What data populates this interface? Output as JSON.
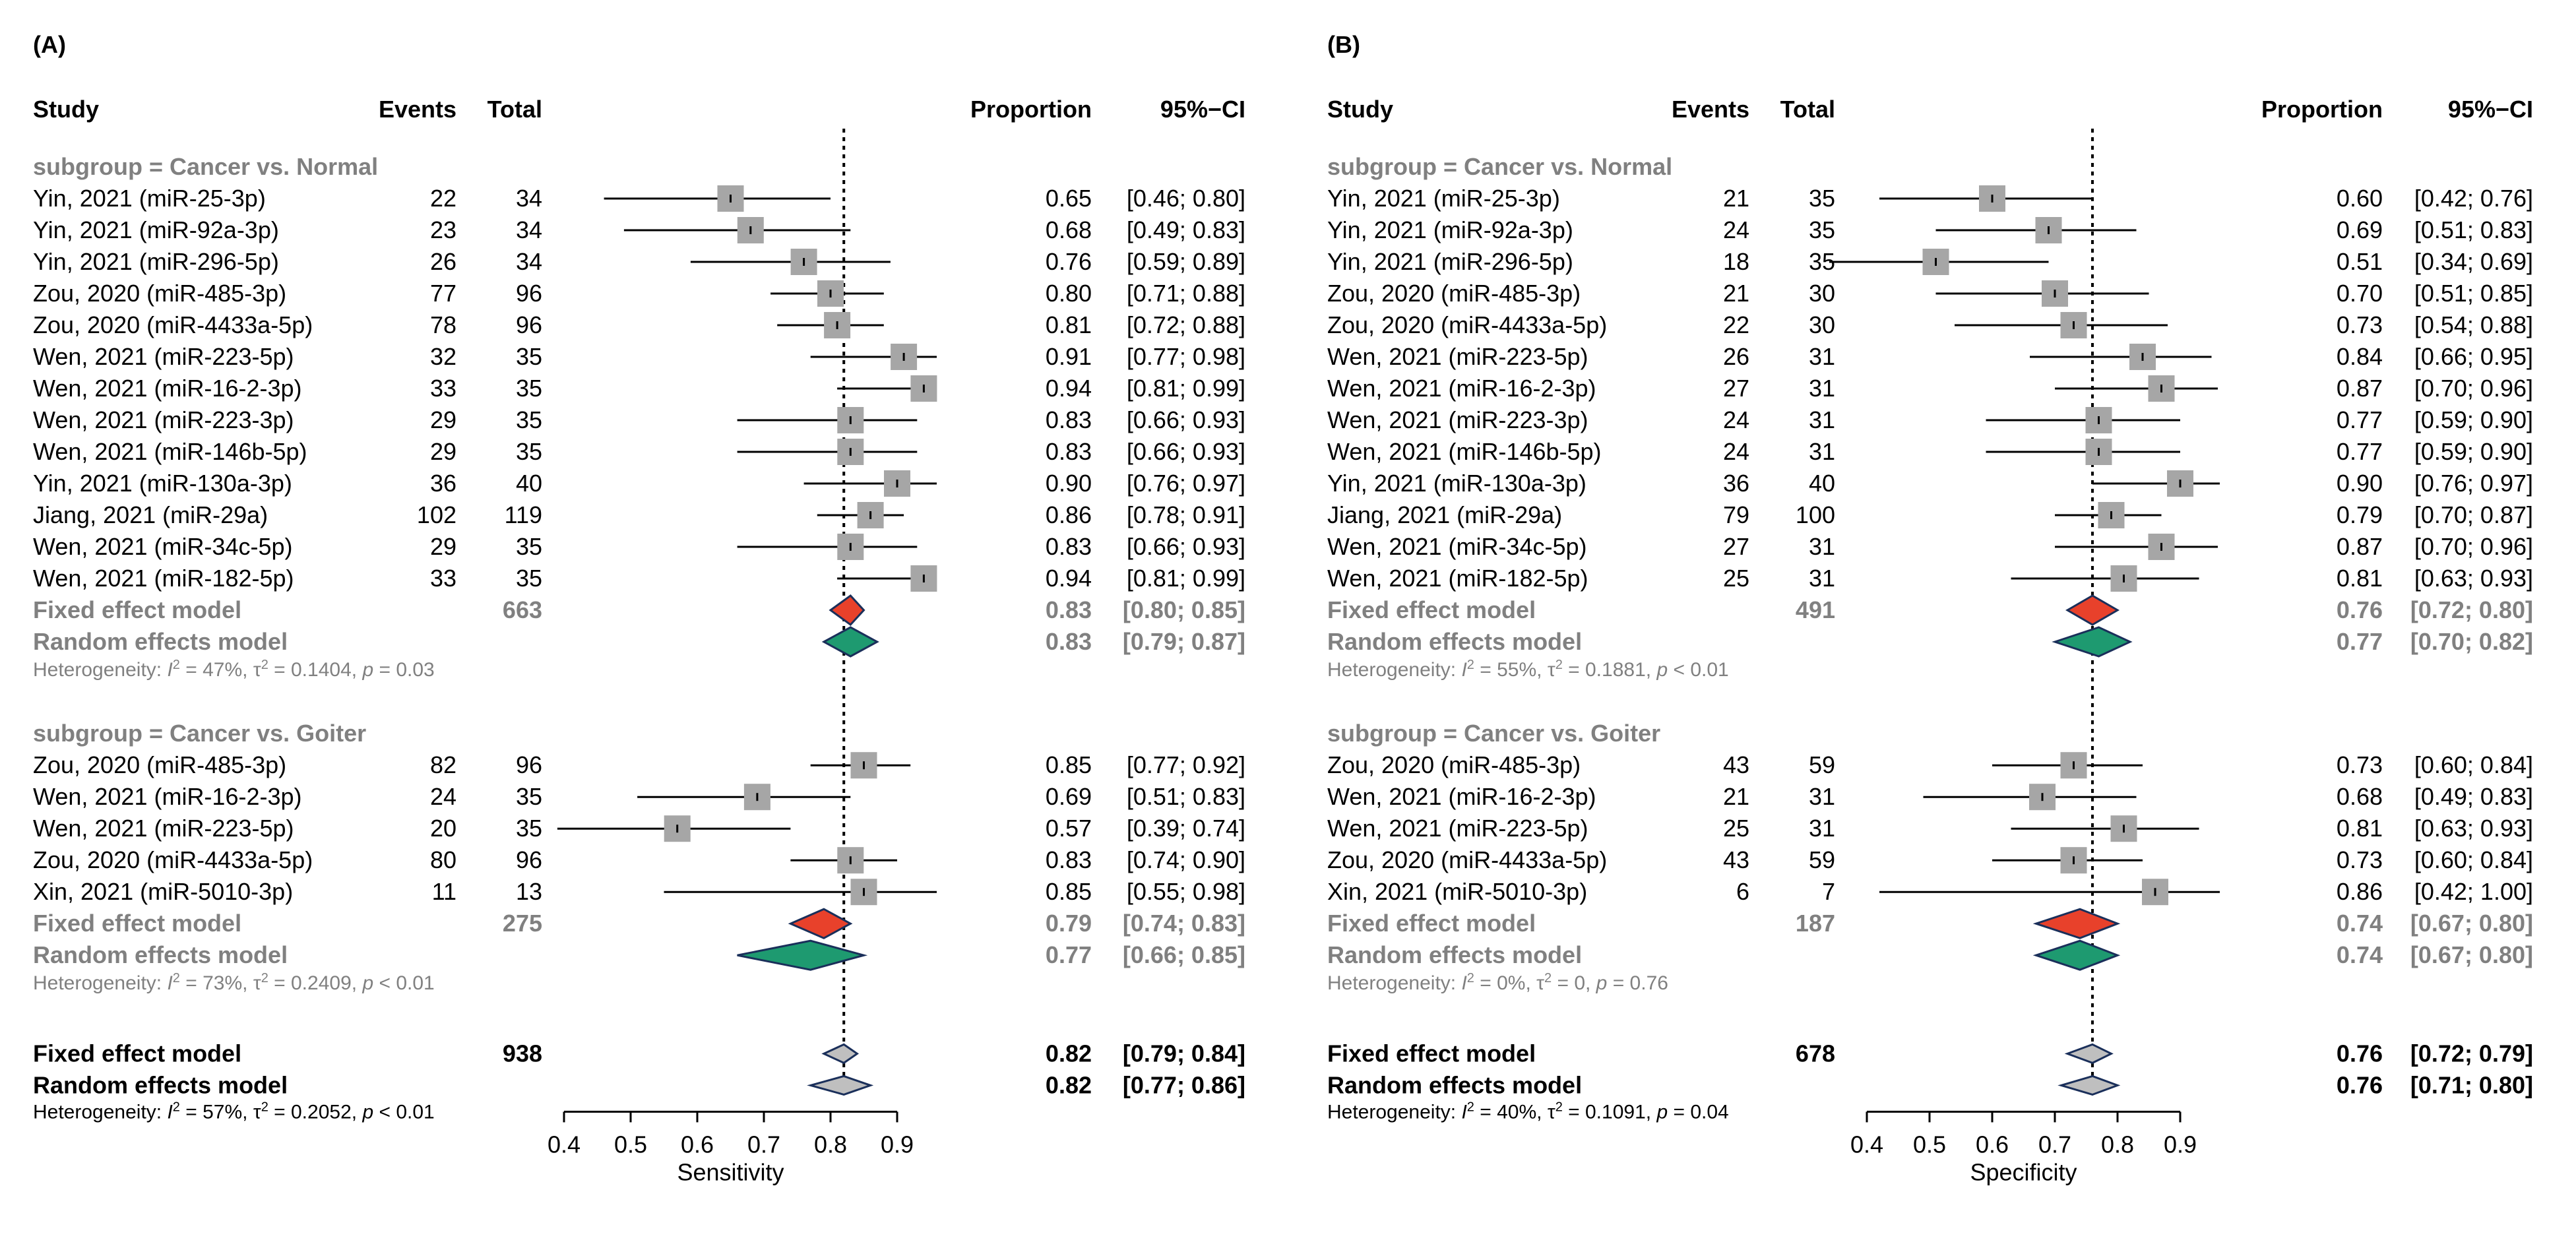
{
  "chart_data": [
    {
      "type": "forest",
      "panel_label": "(A)",
      "headers": {
        "study": "Study",
        "events": "Events",
        "total": "Total",
        "proportion": "Proportion",
        "ci": "95%−CI"
      },
      "xlabel": "Sensitivity",
      "xlim": [
        0.4,
        0.9
      ],
      "xticks": [
        "0.4",
        "0.5",
        "0.6",
        "0.7",
        "0.8",
        "0.9"
      ],
      "reference_line": 0.82,
      "subgroups": [
        {
          "label": "subgroup = Cancer vs. Normal",
          "studies": [
            {
              "name": "Yin, 2021 (miR-25-3p)",
              "events": "22",
              "total": "34",
              "est": 0.65,
              "lo": 0.46,
              "hi": 0.8,
              "prop": "0.65",
              "ci": "[0.46; 0.80]"
            },
            {
              "name": "Yin, 2021 (miR-92a-3p)",
              "events": "23",
              "total": "34",
              "est": 0.68,
              "lo": 0.49,
              "hi": 0.83,
              "prop": "0.68",
              "ci": "[0.49; 0.83]"
            },
            {
              "name": "Yin, 2021 (miR-296-5p)",
              "events": "26",
              "total": "34",
              "est": 0.76,
              "lo": 0.59,
              "hi": 0.89,
              "prop": "0.76",
              "ci": "[0.59; 0.89]"
            },
            {
              "name": "Zou, 2020 (miR-485-3p)",
              "events": "77",
              "total": "96",
              "est": 0.8,
              "lo": 0.71,
              "hi": 0.88,
              "prop": "0.80",
              "ci": "[0.71; 0.88]"
            },
            {
              "name": "Zou, 2020 (miR-4433a-5p)",
              "events": "78",
              "total": "96",
              "est": 0.81,
              "lo": 0.72,
              "hi": 0.88,
              "prop": "0.81",
              "ci": "[0.72; 0.88]"
            },
            {
              "name": "Wen, 2021 (miR-223-5p)",
              "events": "32",
              "total": "35",
              "est": 0.91,
              "lo": 0.77,
              "hi": 0.98,
              "prop": "0.91",
              "ci": "[0.77; 0.98]"
            },
            {
              "name": "Wen, 2021 (miR-16-2-3p)",
              "events": "33",
              "total": "35",
              "est": 0.94,
              "lo": 0.81,
              "hi": 0.99,
              "prop": "0.94",
              "ci": "[0.81; 0.99]"
            },
            {
              "name": "Wen, 2021 (miR-223-3p)",
              "events": "29",
              "total": "35",
              "est": 0.83,
              "lo": 0.66,
              "hi": 0.93,
              "prop": "0.83",
              "ci": "[0.66; 0.93]"
            },
            {
              "name": "Wen, 2021 (miR-146b-5p)",
              "events": "29",
              "total": "35",
              "est": 0.83,
              "lo": 0.66,
              "hi": 0.93,
              "prop": "0.83",
              "ci": "[0.66; 0.93]"
            },
            {
              "name": "Yin, 2021 (miR-130a-3p)",
              "events": "36",
              "total": "40",
              "est": 0.9,
              "lo": 0.76,
              "hi": 0.97,
              "prop": "0.90",
              "ci": "[0.76; 0.97]"
            },
            {
              "name": "Jiang, 2021 (miR-29a)",
              "events": "102",
              "total": "119",
              "est": 0.86,
              "lo": 0.78,
              "hi": 0.91,
              "prop": "0.86",
              "ci": "[0.78; 0.91]"
            },
            {
              "name": "Wen, 2021 (miR-34c-5p)",
              "events": "29",
              "total": "35",
              "est": 0.83,
              "lo": 0.66,
              "hi": 0.93,
              "prop": "0.83",
              "ci": "[0.66; 0.93]"
            },
            {
              "name": "Wen, 2021 (miR-182-5p)",
              "events": "33",
              "total": "35",
              "est": 0.94,
              "lo": 0.81,
              "hi": 0.99,
              "prop": "0.94",
              "ci": "[0.81; 0.99]"
            }
          ],
          "fixed": {
            "label": "Fixed effect model",
            "total": "663",
            "est": 0.83,
            "lo": 0.8,
            "hi": 0.85,
            "prop": "0.83",
            "ci": "[0.80; 0.85]"
          },
          "random": {
            "label": "Random effects model",
            "est": 0.83,
            "lo": 0.79,
            "hi": 0.87,
            "prop": "0.83",
            "ci": "[0.79; 0.87]"
          },
          "het": {
            "prefix": "Heterogeneity: ",
            "i": "I",
            "i_sup": "2",
            "i_val": " = 47%, ",
            "tau": "τ",
            "tau_sup": "2",
            "tau_val": " = 0.1404, ",
            "p": "p",
            "p_val": " = 0.03"
          }
        },
        {
          "label": "subgroup = Cancer vs. Goiter",
          "studies": [
            {
              "name": "Zou, 2020 (miR-485-3p)",
              "events": "82",
              "total": "96",
              "est": 0.85,
              "lo": 0.77,
              "hi": 0.92,
              "prop": "0.85",
              "ci": "[0.77; 0.92]"
            },
            {
              "name": "Wen, 2021 (miR-16-2-3p)",
              "events": "24",
              "total": "35",
              "est": 0.69,
              "lo": 0.51,
              "hi": 0.83,
              "prop": "0.69",
              "ci": "[0.51; 0.83]"
            },
            {
              "name": "Wen, 2021 (miR-223-5p)",
              "events": "20",
              "total": "35",
              "est": 0.57,
              "lo": 0.39,
              "hi": 0.74,
              "prop": "0.57",
              "ci": "[0.39; 0.74]"
            },
            {
              "name": "Zou, 2020 (miR-4433a-5p)",
              "events": "80",
              "total": "96",
              "est": 0.83,
              "lo": 0.74,
              "hi": 0.9,
              "prop": "0.83",
              "ci": "[0.74; 0.90]"
            },
            {
              "name": "Xin, 2021 (miR-5010-3p)",
              "events": "11",
              "total": "13",
              "est": 0.85,
              "lo": 0.55,
              "hi": 0.98,
              "prop": "0.85",
              "ci": "[0.55; 0.98]"
            }
          ],
          "fixed": {
            "label": "Fixed effect model",
            "total": "275",
            "est": 0.79,
            "lo": 0.74,
            "hi": 0.83,
            "prop": "0.79",
            "ci": "[0.74; 0.83]"
          },
          "random": {
            "label": "Random effects model",
            "est": 0.77,
            "lo": 0.66,
            "hi": 0.85,
            "prop": "0.77",
            "ci": "[0.66; 0.85]"
          },
          "het": {
            "prefix": "Heterogeneity: ",
            "i": "I",
            "i_sup": "2",
            "i_val": " = 73%, ",
            "tau": "τ",
            "tau_sup": "2",
            "tau_val": " = 0.2409, ",
            "p": "p",
            "p_val": " < 0.01"
          }
        }
      ],
      "overall": {
        "fixed": {
          "label": "Fixed effect model",
          "total": "938",
          "est": 0.82,
          "lo": 0.79,
          "hi": 0.84,
          "prop": "0.82",
          "ci": "[0.79; 0.84]"
        },
        "random": {
          "label": "Random effects model",
          "est": 0.82,
          "lo": 0.77,
          "hi": 0.86,
          "prop": "0.82",
          "ci": "[0.77; 0.86]"
        },
        "het": {
          "prefix": "Heterogeneity: ",
          "i": "I",
          "i_sup": "2",
          "i_val": " = 57%, ",
          "tau": "τ",
          "tau_sup": "2",
          "tau_val": " = 0.2052, ",
          "p": "p",
          "p_val": " < 0.01"
        }
      }
    },
    {
      "type": "forest",
      "panel_label": "(B)",
      "headers": {
        "study": "Study",
        "events": "Events",
        "total": "Total",
        "proportion": "Proportion",
        "ci": "95%−CI"
      },
      "xlabel": "Specificity",
      "xlim": [
        0.4,
        0.9
      ],
      "xticks": [
        "0.4",
        "0.5",
        "0.6",
        "0.7",
        "0.8",
        "0.9"
      ],
      "reference_line": 0.76,
      "subgroups": [
        {
          "label": "subgroup = Cancer vs. Normal",
          "studies": [
            {
              "name": "Yin, 2021 (miR-25-3p)",
              "events": "21",
              "total": "35",
              "est": 0.6,
              "lo": 0.42,
              "hi": 0.76,
              "prop": "0.60",
              "ci": "[0.42; 0.76]"
            },
            {
              "name": "Yin, 2021 (miR-92a-3p)",
              "events": "24",
              "total": "35",
              "est": 0.69,
              "lo": 0.51,
              "hi": 0.83,
              "prop": "0.69",
              "ci": "[0.51; 0.83]"
            },
            {
              "name": "Yin, 2021 (miR-296-5p)",
              "events": "18",
              "total": "35",
              "est": 0.51,
              "lo": 0.34,
              "hi": 0.69,
              "prop": "0.51",
              "ci": "[0.34; 0.69]"
            },
            {
              "name": "Zou, 2020 (miR-485-3p)",
              "events": "21",
              "total": "30",
              "est": 0.7,
              "lo": 0.51,
              "hi": 0.85,
              "prop": "0.70",
              "ci": "[0.51; 0.85]"
            },
            {
              "name": "Zou, 2020 (miR-4433a-5p)",
              "events": "22",
              "total": "30",
              "est": 0.73,
              "lo": 0.54,
              "hi": 0.88,
              "prop": "0.73",
              "ci": "[0.54; 0.88]"
            },
            {
              "name": "Wen, 2021 (miR-223-5p)",
              "events": "26",
              "total": "31",
              "est": 0.84,
              "lo": 0.66,
              "hi": 0.95,
              "prop": "0.84",
              "ci": "[0.66; 0.95]"
            },
            {
              "name": "Wen, 2021 (miR-16-2-3p)",
              "events": "27",
              "total": "31",
              "est": 0.87,
              "lo": 0.7,
              "hi": 0.96,
              "prop": "0.87",
              "ci": "[0.70; 0.96]"
            },
            {
              "name": "Wen, 2021 (miR-223-3p)",
              "events": "24",
              "total": "31",
              "est": 0.77,
              "lo": 0.59,
              "hi": 0.9,
              "prop": "0.77",
              "ci": "[0.59; 0.90]"
            },
            {
              "name": "Wen, 2021 (miR-146b-5p)",
              "events": "24",
              "total": "31",
              "est": 0.77,
              "lo": 0.59,
              "hi": 0.9,
              "prop": "0.77",
              "ci": "[0.59; 0.90]"
            },
            {
              "name": "Yin, 2021 (miR-130a-3p)",
              "events": "36",
              "total": "40",
              "est": 0.9,
              "lo": 0.76,
              "hi": 0.97,
              "prop": "0.90",
              "ci": "[0.76; 0.97]"
            },
            {
              "name": "Jiang, 2021 (miR-29a)",
              "events": "79",
              "total": "100",
              "est": 0.79,
              "lo": 0.7,
              "hi": 0.87,
              "prop": "0.79",
              "ci": "[0.70; 0.87]"
            },
            {
              "name": "Wen, 2021 (miR-34c-5p)",
              "events": "27",
              "total": "31",
              "est": 0.87,
              "lo": 0.7,
              "hi": 0.96,
              "prop": "0.87",
              "ci": "[0.70; 0.96]"
            },
            {
              "name": "Wen, 2021 (miR-182-5p)",
              "events": "25",
              "total": "31",
              "est": 0.81,
              "lo": 0.63,
              "hi": 0.93,
              "prop": "0.81",
              "ci": "[0.63; 0.93]"
            }
          ],
          "fixed": {
            "label": "Fixed effect model",
            "total": "491",
            "est": 0.76,
            "lo": 0.72,
            "hi": 0.8,
            "prop": "0.76",
            "ci": "[0.72; 0.80]"
          },
          "random": {
            "label": "Random effects model",
            "est": 0.77,
            "lo": 0.7,
            "hi": 0.82,
            "prop": "0.77",
            "ci": "[0.70; 0.82]"
          },
          "het": {
            "prefix": "Heterogeneity: ",
            "i": "I",
            "i_sup": "2",
            "i_val": " = 55%, ",
            "tau": "τ",
            "tau_sup": "2",
            "tau_val": " = 0.1881, ",
            "p": "p",
            "p_val": " < 0.01"
          }
        },
        {
          "label": "subgroup = Cancer vs. Goiter",
          "studies": [
            {
              "name": "Zou, 2020 (miR-485-3p)",
              "events": "43",
              "total": "59",
              "est": 0.73,
              "lo": 0.6,
              "hi": 0.84,
              "prop": "0.73",
              "ci": "[0.60; 0.84]"
            },
            {
              "name": "Wen, 2021 (miR-16-2-3p)",
              "events": "21",
              "total": "31",
              "est": 0.68,
              "lo": 0.49,
              "hi": 0.83,
              "prop": "0.68",
              "ci": "[0.49; 0.83]"
            },
            {
              "name": "Wen, 2021 (miR-223-5p)",
              "events": "25",
              "total": "31",
              "est": 0.81,
              "lo": 0.63,
              "hi": 0.93,
              "prop": "0.81",
              "ci": "[0.63; 0.93]"
            },
            {
              "name": "Zou, 2020 (miR-4433a-5p)",
              "events": "43",
              "total": "59",
              "est": 0.73,
              "lo": 0.6,
              "hi": 0.84,
              "prop": "0.73",
              "ci": "[0.60; 0.84]"
            },
            {
              "name": "Xin, 2021 (miR-5010-3p)",
              "events": "6",
              "total": "7",
              "est": 0.86,
              "lo": 0.42,
              "hi": 1.0,
              "prop": "0.86",
              "ci": "[0.42; 1.00]"
            }
          ],
          "fixed": {
            "label": "Fixed effect model",
            "total": "187",
            "est": 0.74,
            "lo": 0.67,
            "hi": 0.8,
            "prop": "0.74",
            "ci": "[0.67; 0.80]"
          },
          "random": {
            "label": "Random effects model",
            "est": 0.74,
            "lo": 0.67,
            "hi": 0.8,
            "prop": "0.74",
            "ci": "[0.67; 0.80]"
          },
          "het": {
            "prefix": "Heterogeneity: ",
            "i": "I",
            "i_sup": "2",
            "i_val": " = 0%, ",
            "tau": "τ",
            "tau_sup": "2",
            "tau_val": " = 0, ",
            "p": "p",
            "p_val": " = 0.76"
          }
        }
      ],
      "overall": {
        "fixed": {
          "label": "Fixed effect model",
          "total": "678",
          "est": 0.76,
          "lo": 0.72,
          "hi": 0.79,
          "prop": "0.76",
          "ci": "[0.72; 0.79]"
        },
        "random": {
          "label": "Random effects model",
          "est": 0.76,
          "lo": 0.71,
          "hi": 0.8,
          "prop": "0.76",
          "ci": "[0.71; 0.80]"
        },
        "het": {
          "prefix": "Heterogeneity: ",
          "i": "I",
          "i_sup": "2",
          "i_val": " = 40%, ",
          "tau": "τ",
          "tau_sup": "2",
          "tau_val": " = 0.1091, ",
          "p": "p",
          "p_val": " = 0.04"
        }
      }
    }
  ],
  "colors": {
    "study_box": "#a6a6a6",
    "ci_line": "#000000",
    "fixed_diamond": "#e8412b",
    "random_diamond": "#1e9a70",
    "overall_diamond": "#bfbfbf",
    "grey_text": "#808080"
  }
}
